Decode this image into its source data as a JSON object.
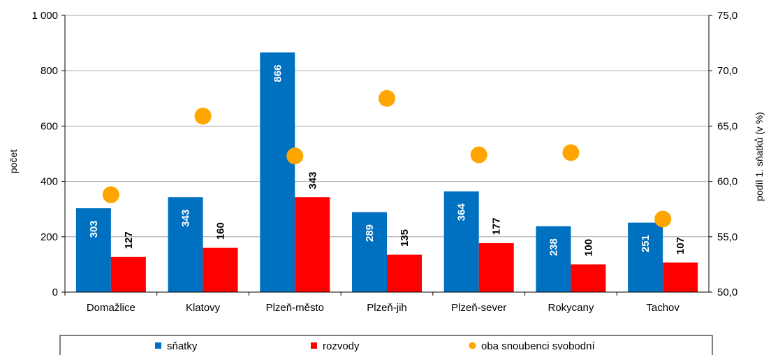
{
  "chart_data": {
    "type": "bar",
    "categories": [
      "Domažlice",
      "Klatovy",
      "Plzeň-město",
      "Plzeň-jih",
      "Plzeň-sever",
      "Rokycany",
      "Tachov"
    ],
    "series": [
      {
        "name": "sňatky",
        "kind": "bar",
        "axis": "left",
        "color": "#0070C0",
        "values": [
          303,
          343,
          866,
          289,
          364,
          238,
          251
        ]
      },
      {
        "name": "rozvody",
        "kind": "bar",
        "axis": "left",
        "color": "#FF0000",
        "values": [
          127,
          160,
          343,
          135,
          177,
          100,
          107
        ]
      },
      {
        "name": "oba snoubenci svobodní",
        "kind": "scatter",
        "axis": "right",
        "color": "#FFA500",
        "values": [
          58.8,
          65.9,
          62.3,
          67.5,
          62.4,
          62.6,
          56.6
        ]
      }
    ],
    "ylabel": "počet",
    "ylim": [
      0,
      1000
    ],
    "yticks": [
      "0",
      "200",
      "400",
      "600",
      "800",
      "1 000"
    ],
    "y2label": "podíl 1. sňatků (v %)",
    "y2lim": [
      50,
      75
    ],
    "y2ticks": [
      "50,0",
      "55,0",
      "60,0",
      "65,0",
      "70,0",
      "75,0"
    ],
    "grid": true,
    "legend_position": "bottom"
  }
}
